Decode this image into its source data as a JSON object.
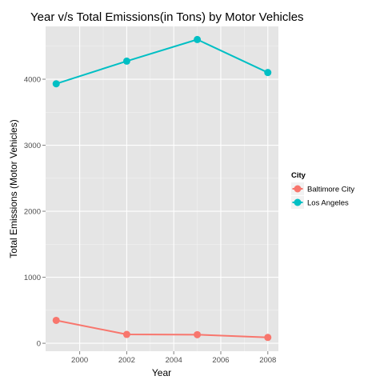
{
  "chart_data": {
    "type": "line",
    "title": "Year v/s Total Emissions(in Tons) by Motor Vehicles",
    "xlabel": "Year",
    "ylabel": "Total Emissions (Motor Vehicles)",
    "x": [
      1999,
      2002,
      2005,
      2008
    ],
    "x_ticks": [
      2000,
      2002,
      2004,
      2006,
      2008
    ],
    "y_ticks": [
      0,
      1000,
      2000,
      3000,
      4000
    ],
    "xlim": [
      1998.55,
      2008.45
    ],
    "ylim": [
      -120,
      4800
    ],
    "grid": true,
    "legend": {
      "title": "City",
      "placement": "right"
    },
    "series": [
      {
        "name": "Baltimore City",
        "color": "#F8766D",
        "values": [
          346.8,
          134.3,
          130.4,
          88.3
        ]
      },
      {
        "name": "Los Angeles",
        "color": "#00BFC4",
        "values": [
          3931.1,
          4274.0,
          4601.4,
          4101.3
        ]
      }
    ]
  }
}
